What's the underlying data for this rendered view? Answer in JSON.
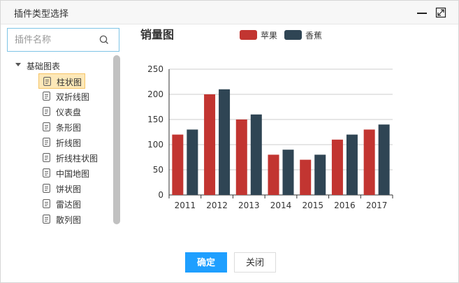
{
  "dialog": {
    "title": "插件类型选择",
    "minimize_icon": "minimize-icon",
    "maximize_icon": "maximize-icon"
  },
  "search": {
    "placeholder": "插件名称",
    "value": "",
    "icon": "search-icon"
  },
  "tree": {
    "root_label": "基础图表",
    "items": [
      {
        "label": "柱状图",
        "selected": true
      },
      {
        "label": "双折线图",
        "selected": false
      },
      {
        "label": "仪表盘",
        "selected": false
      },
      {
        "label": "条形图",
        "selected": false
      },
      {
        "label": "折线图",
        "selected": false
      },
      {
        "label": "折线柱状图",
        "selected": false
      },
      {
        "label": "中国地图",
        "selected": false
      },
      {
        "label": "饼状图",
        "selected": false
      },
      {
        "label": "雷达图",
        "selected": false
      },
      {
        "label": "散列图",
        "selected": false
      }
    ]
  },
  "chart_data": {
    "type": "bar",
    "title": "销量图",
    "categories": [
      "2011",
      "2012",
      "2013",
      "2014",
      "2015",
      "2016",
      "2017"
    ],
    "series": [
      {
        "name": "苹果",
        "color": "#c23531",
        "values": [
          120,
          200,
          150,
          80,
          70,
          110,
          130
        ]
      },
      {
        "name": "香蕉",
        "color": "#2f4554",
        "values": [
          130,
          210,
          160,
          90,
          80,
          120,
          140
        ]
      }
    ],
    "ylim": [
      0,
      250
    ],
    "yticks": [
      0,
      50,
      100,
      150,
      200,
      250
    ],
    "grid": true,
    "legend": "top-center"
  },
  "buttons": {
    "ok_label": "确定",
    "close_label": "关闭"
  },
  "colors": {
    "primary": "#1e9fff",
    "selected_bg": "#fde8b8",
    "search_border": "#7ec4e6"
  }
}
